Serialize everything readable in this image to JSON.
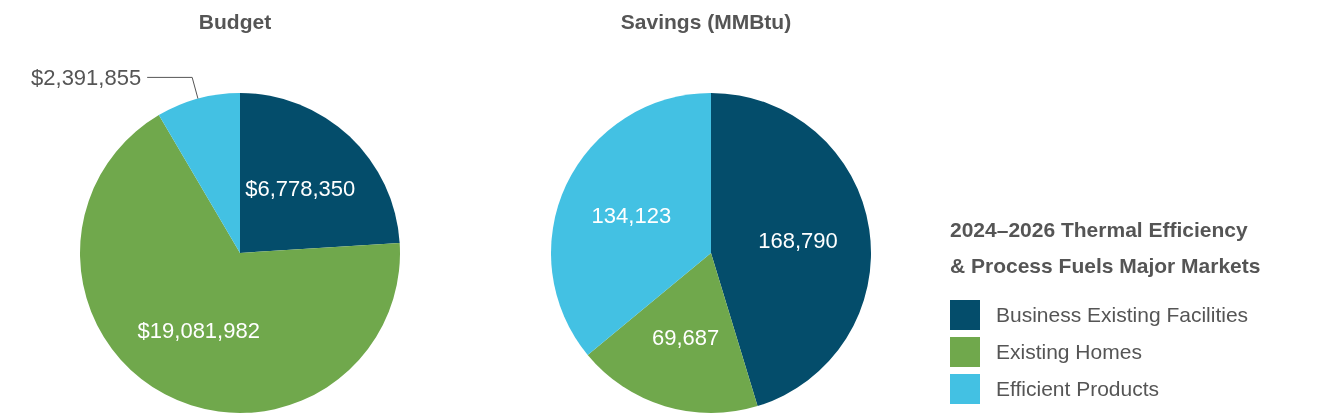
{
  "chart_data": [
    {
      "type": "pie",
      "title": "Budget",
      "categories": [
        null,
        null,
        null
      ],
      "values": [
        6778350,
        19081982,
        2391855
      ],
      "value_labels": [
        "$6,778,350",
        "$19,081,982",
        "$2,391,855"
      ],
      "colors": [
        "#044d6b",
        "#70a84c",
        "#43c1e3"
      ],
      "legend": false
    },
    {
      "type": "pie",
      "title": "Savings (MMBtu)",
      "categories": [
        "Business Existing Facilities",
        "Existing Homes",
        "Efficient Products"
      ],
      "values": [
        168790,
        69687,
        134123
      ],
      "value_labels": [
        "168,790",
        "69,687",
        "134,123"
      ],
      "colors": [
        "#044d6b",
        "#70a84c",
        "#43c1e3"
      ],
      "legend": "right",
      "legend_title": "2024–2026 Thermal Efficiency & Process Fuels Major Markets"
    }
  ]
}
